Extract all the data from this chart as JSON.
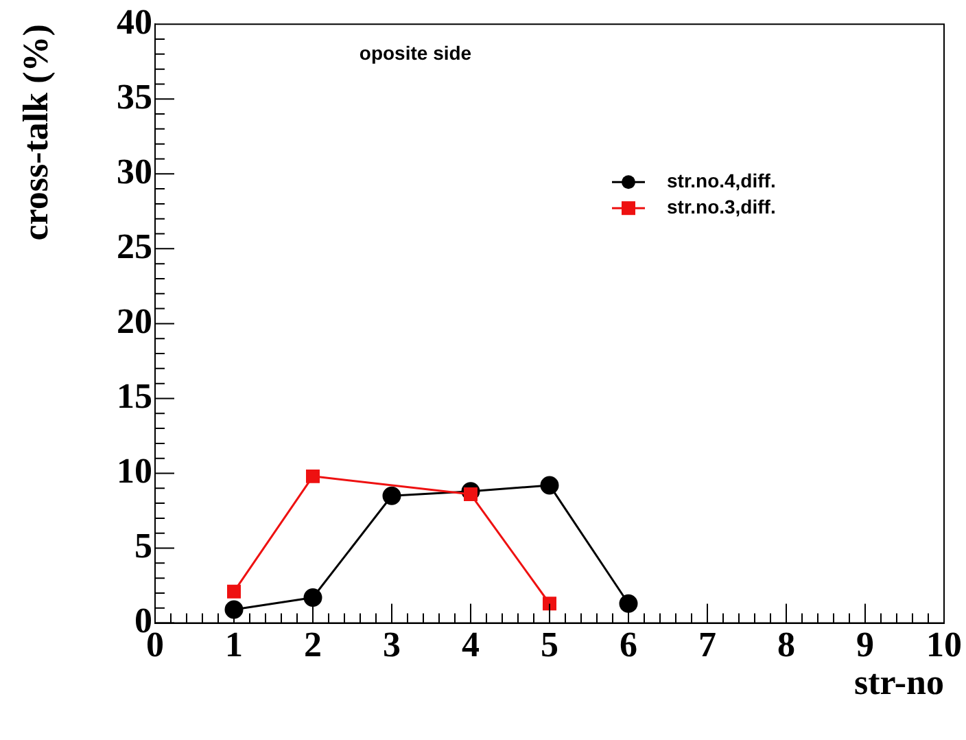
{
  "chart_data": {
    "type": "line",
    "xlabel": "str-no",
    "ylabel": "cross-talk (%)",
    "annotations": [
      "oposite side"
    ],
    "xlim": [
      0,
      10
    ],
    "xticks": [
      0,
      1,
      2,
      3,
      4,
      5,
      6,
      7,
      8,
      9,
      10
    ],
    "ylim": [
      0,
      40
    ],
    "yticks": [
      0,
      5,
      10,
      15,
      20,
      25,
      30,
      35,
      40
    ],
    "grid": false,
    "legend": "top right",
    "series": [
      {
        "name": "str.no.4,diff.",
        "color": "#000000",
        "marker": "circle",
        "x": [
          1,
          2,
          3,
          4,
          5,
          6
        ],
        "values": [
          0.9,
          1.7,
          8.5,
          8.8,
          9.2,
          1.3
        ]
      },
      {
        "name": "str.no.3,diff.",
        "color": "#ee1111",
        "marker": "square",
        "x": [
          1,
          2,
          4,
          5
        ],
        "values": [
          2.1,
          9.8,
          8.6,
          1.3
        ]
      }
    ]
  }
}
